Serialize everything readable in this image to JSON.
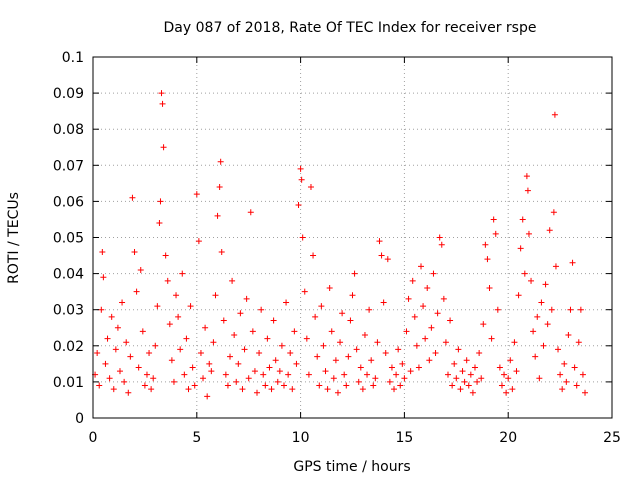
{
  "chart_data": {
    "type": "scatter",
    "title": "Day 087 of 2018, Rate Of TEC Index for receiver rspe",
    "xlabel": "GPS time / hours",
    "ylabel": "ROTI / TECUs",
    "xlim": [
      0,
      25
    ],
    "ylim": [
      0,
      0.1
    ],
    "xticks": [
      0,
      5,
      10,
      15,
      20,
      25
    ],
    "xtick_labels": [
      "0",
      "5",
      "10",
      "15",
      "20",
      "25"
    ],
    "yticks": [
      0,
      0.01,
      0.02,
      0.03,
      0.04,
      0.05,
      0.06,
      0.07,
      0.08,
      0.09,
      0.1
    ],
    "ytick_labels": [
      "0",
      "0.01",
      "0.02",
      "0.03",
      "0.04",
      "0.05",
      "0.06",
      "0.07",
      "0.08",
      "0.09",
      "0.1"
    ],
    "grid": true,
    "marker": "+",
    "color": "#ff0000",
    "series": [
      {
        "name": "ROTI",
        "points": [
          [
            0.1,
            0.012
          ],
          [
            0.2,
            0.018
          ],
          [
            0.3,
            0.009
          ],
          [
            0.4,
            0.03
          ],
          [
            0.45,
            0.046
          ],
          [
            0.5,
            0.039
          ],
          [
            0.6,
            0.015
          ],
          [
            0.7,
            0.022
          ],
          [
            0.8,
            0.011
          ],
          [
            0.9,
            0.028
          ],
          [
            1.0,
            0.008
          ],
          [
            1.1,
            0.019
          ],
          [
            1.2,
            0.025
          ],
          [
            1.3,
            0.013
          ],
          [
            1.4,
            0.032
          ],
          [
            1.5,
            0.01
          ],
          [
            1.6,
            0.021
          ],
          [
            1.7,
            0.007
          ],
          [
            1.8,
            0.017
          ],
          [
            1.9,
            0.061
          ],
          [
            2.0,
            0.046
          ],
          [
            2.1,
            0.035
          ],
          [
            2.2,
            0.014
          ],
          [
            2.3,
            0.041
          ],
          [
            2.4,
            0.024
          ],
          [
            2.5,
            0.009
          ],
          [
            2.6,
            0.012
          ],
          [
            2.7,
            0.018
          ],
          [
            2.8,
            0.008
          ],
          [
            2.9,
            0.011
          ],
          [
            3.0,
            0.02
          ],
          [
            3.1,
            0.031
          ],
          [
            3.2,
            0.054
          ],
          [
            3.25,
            0.06
          ],
          [
            3.3,
            0.09
          ],
          [
            3.35,
            0.087
          ],
          [
            3.4,
            0.075
          ],
          [
            3.5,
            0.045
          ],
          [
            3.6,
            0.038
          ],
          [
            3.7,
            0.026
          ],
          [
            3.8,
            0.016
          ],
          [
            3.9,
            0.01
          ],
          [
            4.0,
            0.034
          ],
          [
            4.1,
            0.028
          ],
          [
            4.2,
            0.019
          ],
          [
            4.3,
            0.04
          ],
          [
            4.4,
            0.012
          ],
          [
            4.5,
            0.022
          ],
          [
            4.6,
            0.008
          ],
          [
            4.7,
            0.031
          ],
          [
            4.8,
            0.014
          ],
          [
            4.9,
            0.009
          ],
          [
            5.0,
            0.062
          ],
          [
            5.1,
            0.049
          ],
          [
            5.2,
            0.018
          ],
          [
            5.3,
            0.011
          ],
          [
            5.4,
            0.025
          ],
          [
            5.5,
            0.006
          ],
          [
            5.6,
            0.015
          ],
          [
            5.7,
            0.013
          ],
          [
            5.8,
            0.021
          ],
          [
            5.9,
            0.034
          ],
          [
            6.0,
            0.056
          ],
          [
            6.1,
            0.064
          ],
          [
            6.15,
            0.071
          ],
          [
            6.2,
            0.046
          ],
          [
            6.3,
            0.027
          ],
          [
            6.4,
            0.012
          ],
          [
            6.5,
            0.009
          ],
          [
            6.6,
            0.017
          ],
          [
            6.7,
            0.038
          ],
          [
            6.8,
            0.023
          ],
          [
            6.9,
            0.01
          ],
          [
            7.0,
            0.015
          ],
          [
            7.1,
            0.029
          ],
          [
            7.2,
            0.008
          ],
          [
            7.3,
            0.019
          ],
          [
            7.4,
            0.033
          ],
          [
            7.5,
            0.011
          ],
          [
            7.6,
            0.057
          ],
          [
            7.7,
            0.024
          ],
          [
            7.8,
            0.013
          ],
          [
            7.9,
            0.007
          ],
          [
            8.0,
            0.018
          ],
          [
            8.1,
            0.03
          ],
          [
            8.2,
            0.012
          ],
          [
            8.3,
            0.009
          ],
          [
            8.4,
            0.022
          ],
          [
            8.5,
            0.014
          ],
          [
            8.6,
            0.008
          ],
          [
            8.7,
            0.027
          ],
          [
            8.8,
            0.016
          ],
          [
            8.9,
            0.01
          ],
          [
            9.0,
            0.013
          ],
          [
            9.1,
            0.02
          ],
          [
            9.2,
            0.009
          ],
          [
            9.3,
            0.032
          ],
          [
            9.4,
            0.012
          ],
          [
            9.5,
            0.018
          ],
          [
            9.6,
            0.008
          ],
          [
            9.7,
            0.024
          ],
          [
            9.8,
            0.015
          ],
          [
            9.9,
            0.059
          ],
          [
            10.0,
            0.069
          ],
          [
            10.05,
            0.066
          ],
          [
            10.1,
            0.05
          ],
          [
            10.2,
            0.035
          ],
          [
            10.3,
            0.022
          ],
          [
            10.4,
            0.012
          ],
          [
            10.5,
            0.064
          ],
          [
            10.6,
            0.045
          ],
          [
            10.7,
            0.028
          ],
          [
            10.8,
            0.017
          ],
          [
            10.9,
            0.009
          ],
          [
            11.0,
            0.031
          ],
          [
            11.1,
            0.02
          ],
          [
            11.2,
            0.013
          ],
          [
            11.3,
            0.008
          ],
          [
            11.4,
            0.036
          ],
          [
            11.5,
            0.024
          ],
          [
            11.6,
            0.011
          ],
          [
            11.7,
            0.016
          ],
          [
            11.8,
            0.007
          ],
          [
            11.9,
            0.021
          ],
          [
            12.0,
            0.029
          ],
          [
            12.1,
            0.012
          ],
          [
            12.2,
            0.009
          ],
          [
            12.3,
            0.017
          ],
          [
            12.4,
            0.027
          ],
          [
            12.5,
            0.034
          ],
          [
            12.6,
            0.04
          ],
          [
            12.7,
            0.019
          ],
          [
            12.8,
            0.01
          ],
          [
            12.9,
            0.014
          ],
          [
            13.0,
            0.008
          ],
          [
            13.1,
            0.023
          ],
          [
            13.2,
            0.012
          ],
          [
            13.3,
            0.03
          ],
          [
            13.4,
            0.016
          ],
          [
            13.5,
            0.009
          ],
          [
            13.6,
            0.011
          ],
          [
            13.7,
            0.021
          ],
          [
            13.8,
            0.049
          ],
          [
            13.9,
            0.045
          ],
          [
            14.0,
            0.032
          ],
          [
            14.1,
            0.018
          ],
          [
            14.2,
            0.044
          ],
          [
            14.3,
            0.01
          ],
          [
            14.4,
            0.014
          ],
          [
            14.5,
            0.008
          ],
          [
            14.6,
            0.012
          ],
          [
            14.7,
            0.019
          ],
          [
            14.8,
            0.009
          ],
          [
            14.9,
            0.015
          ],
          [
            15.0,
            0.011
          ],
          [
            15.1,
            0.024
          ],
          [
            15.2,
            0.033
          ],
          [
            15.3,
            0.013
          ],
          [
            15.4,
            0.038
          ],
          [
            15.5,
            0.028
          ],
          [
            15.6,
            0.02
          ],
          [
            15.7,
            0.014
          ],
          [
            15.8,
            0.042
          ],
          [
            15.9,
            0.031
          ],
          [
            16.0,
            0.022
          ],
          [
            16.1,
            0.036
          ],
          [
            16.2,
            0.016
          ],
          [
            16.3,
            0.025
          ],
          [
            16.4,
            0.04
          ],
          [
            16.5,
            0.018
          ],
          [
            16.6,
            0.029
          ],
          [
            16.7,
            0.05
          ],
          [
            16.8,
            0.048
          ],
          [
            16.9,
            0.033
          ],
          [
            17.0,
            0.021
          ],
          [
            17.1,
            0.012
          ],
          [
            17.2,
            0.027
          ],
          [
            17.3,
            0.009
          ],
          [
            17.4,
            0.015
          ],
          [
            17.5,
            0.011
          ],
          [
            17.6,
            0.019
          ],
          [
            17.7,
            0.008
          ],
          [
            17.8,
            0.013
          ],
          [
            17.9,
            0.01
          ],
          [
            18.0,
            0.016
          ],
          [
            18.1,
            0.009
          ],
          [
            18.2,
            0.012
          ],
          [
            18.3,
            0.007
          ],
          [
            18.4,
            0.014
          ],
          [
            18.5,
            0.01
          ],
          [
            18.6,
            0.018
          ],
          [
            18.7,
            0.011
          ],
          [
            18.8,
            0.026
          ],
          [
            18.9,
            0.048
          ],
          [
            19.0,
            0.044
          ],
          [
            19.1,
            0.036
          ],
          [
            19.2,
            0.022
          ],
          [
            19.3,
            0.055
          ],
          [
            19.4,
            0.051
          ],
          [
            19.5,
            0.03
          ],
          [
            19.6,
            0.014
          ],
          [
            19.7,
            0.009
          ],
          [
            19.8,
            0.012
          ],
          [
            19.9,
            0.007
          ],
          [
            20.0,
            0.011
          ],
          [
            20.1,
            0.016
          ],
          [
            20.2,
            0.008
          ],
          [
            20.3,
            0.021
          ],
          [
            20.4,
            0.013
          ],
          [
            20.5,
            0.034
          ],
          [
            20.6,
            0.047
          ],
          [
            20.7,
            0.055
          ],
          [
            20.8,
            0.04
          ],
          [
            20.9,
            0.067
          ],
          [
            20.95,
            0.063
          ],
          [
            21.0,
            0.051
          ],
          [
            21.1,
            0.038
          ],
          [
            21.2,
            0.024
          ],
          [
            21.3,
            0.017
          ],
          [
            21.4,
            0.028
          ],
          [
            21.5,
            0.011
          ],
          [
            21.6,
            0.032
          ],
          [
            21.7,
            0.02
          ],
          [
            21.8,
            0.037
          ],
          [
            21.9,
            0.026
          ],
          [
            22.0,
            0.052
          ],
          [
            22.1,
            0.03
          ],
          [
            22.2,
            0.057
          ],
          [
            22.25,
            0.084
          ],
          [
            22.3,
            0.042
          ],
          [
            22.4,
            0.019
          ],
          [
            22.5,
            0.012
          ],
          [
            22.6,
            0.008
          ],
          [
            22.7,
            0.015
          ],
          [
            22.8,
            0.01
          ],
          [
            22.9,
            0.023
          ],
          [
            23.0,
            0.03
          ],
          [
            23.1,
            0.043
          ],
          [
            23.2,
            0.014
          ],
          [
            23.3,
            0.009
          ],
          [
            23.4,
            0.021
          ],
          [
            23.5,
            0.03
          ],
          [
            23.6,
            0.012
          ],
          [
            23.7,
            0.007
          ]
        ]
      }
    ]
  }
}
